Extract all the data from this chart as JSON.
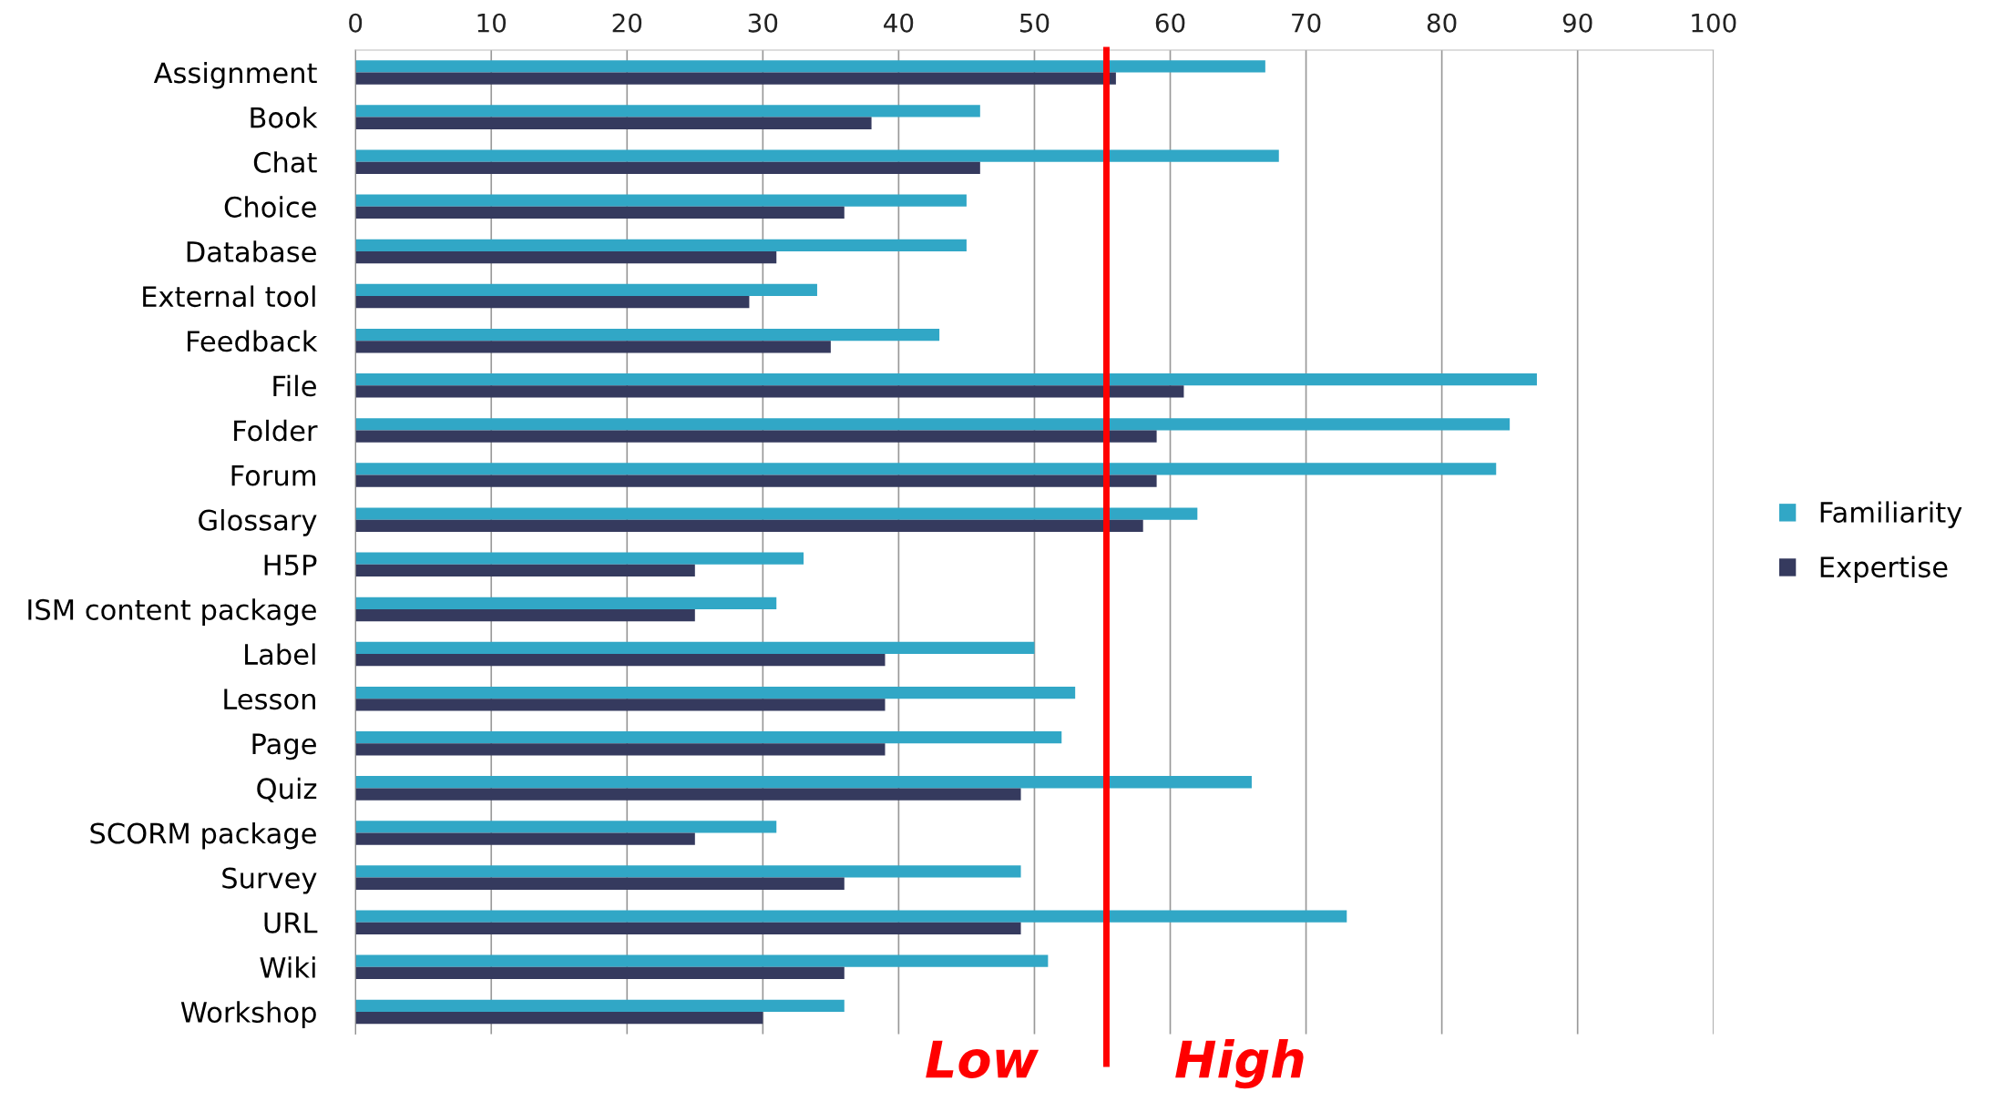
{
  "chart_data": {
    "type": "bar",
    "orientation": "horizontal",
    "categories": [
      "Assignment",
      "Book",
      "Chat",
      "Choice",
      "Database",
      "External tool",
      "Feedback",
      "File",
      "Folder",
      "Forum",
      "Glossary",
      "H5P",
      "ISM content package",
      "Label",
      "Lesson",
      "Page",
      "Quiz",
      "SCORM package",
      "Survey",
      "URL",
      "Wiki",
      "Workshop"
    ],
    "series": [
      {
        "name": "Familiarity",
        "color": "#31a7c6",
        "values": [
          67,
          46,
          68,
          45,
          45,
          34,
          43,
          87,
          85,
          84,
          62,
          33,
          31,
          50,
          53,
          52,
          66,
          31,
          49,
          73,
          51,
          36
        ]
      },
      {
        "name": "Expertise",
        "color": "#353a5e",
        "values": [
          56,
          38,
          46,
          36,
          31,
          29,
          35,
          61,
          59,
          59,
          58,
          25,
          25,
          39,
          39,
          39,
          49,
          25,
          36,
          49,
          36,
          30
        ]
      }
    ],
    "xlim": [
      0,
      100
    ],
    "xticks": [
      0,
      10,
      20,
      30,
      40,
      50,
      60,
      70,
      80,
      90,
      100
    ],
    "grid": "x",
    "legend": "right",
    "ref_lines": [
      {
        "axis": "x",
        "value": 55.3,
        "color": "#ff0000"
      }
    ],
    "annotations": [
      "Low",
      "High"
    ]
  }
}
